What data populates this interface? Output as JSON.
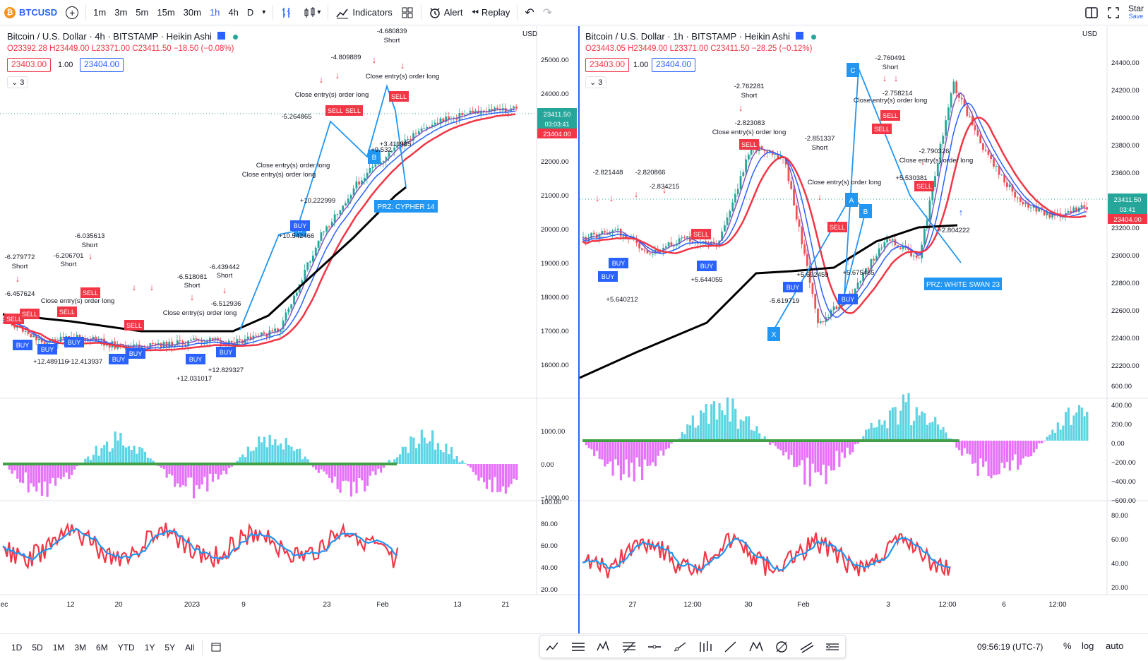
{
  "toolbar": {
    "symbol": "BTCUSD",
    "intervals": [
      "1m",
      "3m",
      "5m",
      "15m",
      "30m",
      "1h",
      "4h",
      "D"
    ],
    "active_interval": "1h",
    "indicators": "Indicators",
    "alert": "Alert",
    "replay": "Replay",
    "star": "Star",
    "save": "Save"
  },
  "left": {
    "title": "Bitcoin / U.S. Dollar · 4h · BITSTAMP · Heikin Ashi",
    "o": "O23392.28",
    "h": "H23449.00",
    "l": "L23371.00",
    "c": "C23411.50",
    "chg": "−18.50 (−0.08%)",
    "sell": "23403.00",
    "qty": "1.00",
    "buy": "23404.00",
    "count": "3",
    "currency": "USD",
    "price_ticks": [
      "25000.00",
      "24000.00",
      "23000.00",
      "22000.00",
      "21000.00",
      "20000.00",
      "19000.00",
      "18000.00",
      "17000.00",
      "16000.00"
    ],
    "last_price": "23411.50",
    "countdown": "03:03:41",
    "bid": "23404.00",
    "macd_ticks": [
      "1000.00",
      "0.00",
      "−1000.00"
    ],
    "rsi_ticks": [
      "100.00",
      "80.00",
      "60.00",
      "40.00",
      "20.00"
    ],
    "time_ticks": [
      "ec",
      "12",
      "20",
      "2023",
      "9",
      "23",
      "Feb",
      "13",
      "21"
    ],
    "prz": "PRZ: CYPHER 14"
  },
  "right": {
    "title": "Bitcoin / U.S. Dollar · 1h · BITSTAMP · Heikin Ashi",
    "o": "O23443.05",
    "h": "H23449.00",
    "l": "L23371.00",
    "c": "C23411.50",
    "chg": "−28.25 (−0.12%)",
    "sell": "23403.00",
    "qty": "1.00",
    "buy": "23404.00",
    "count": "3",
    "currency": "USD",
    "price_ticks": [
      "24400.00",
      "24200.00",
      "24000.00",
      "23800.00",
      "23600.00",
      "23400.00",
      "23200.00",
      "23000.00",
      "22800.00",
      "22600.00",
      "22400.00",
      "22200.00"
    ],
    "last_price": "23411.50",
    "countdown": "03:41",
    "bid": "23404.00",
    "macd_ticks": [
      "600.00",
      "400.00",
      "200.00",
      "0.00",
      "−200.00",
      "−400.00",
      "−600.00"
    ],
    "rsi_ticks": [
      "80.00",
      "60.00",
      "40.00",
      "20.00"
    ],
    "time_ticks": [
      "27",
      "12:00",
      "30",
      "Feb",
      "3",
      "12:00",
      "6",
      "12:00"
    ],
    "prz": "PRZ: WHITE SWAN 23"
  },
  "bottom": {
    "ranges": [
      "1D",
      "5D",
      "1M",
      "3M",
      "6M",
      "YTD",
      "1Y",
      "5Y",
      "All"
    ],
    "time": "09:56:19 (UTC-7)",
    "pct": "%",
    "log": "log",
    "auto": "auto"
  },
  "colors": {
    "accent": "#2962ff",
    "up": "#26a69a",
    "down": "#ef5350"
  }
}
